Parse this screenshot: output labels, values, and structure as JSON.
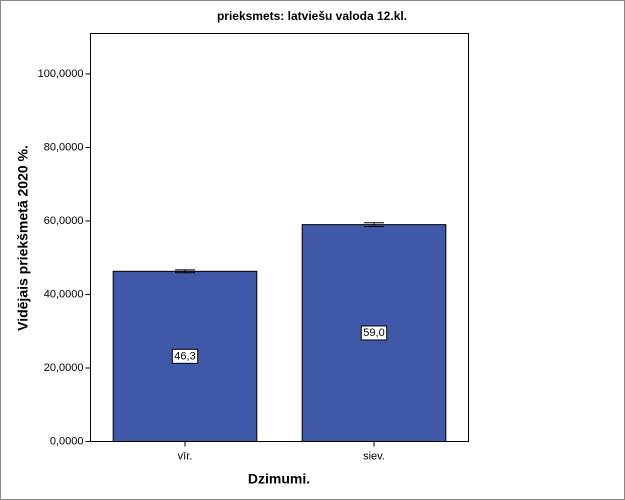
{
  "chart_data": {
    "type": "bar",
    "title": "prieksmets: latviešu valoda 12.kl.",
    "x_label": "Dzimumi.",
    "y_label": "Vidējais priekšmetā 2020 %.",
    "categories": [
      "vīr.",
      "siev."
    ],
    "values": [
      46.3,
      59.0
    ],
    "value_labels": [
      "46,3",
      "59,0"
    ],
    "errors": [
      0.4,
      0.5
    ],
    "color": "#3f58a8",
    "ylim": [
      0,
      111
    ],
    "yticks": [
      {
        "value": 0,
        "label": "0,0000"
      },
      {
        "value": 20,
        "label": "20,0000"
      },
      {
        "value": 40,
        "label": "40,0000"
      },
      {
        "value": 60,
        "label": "60,0000"
      },
      {
        "value": 80,
        "label": "80,0000"
      },
      {
        "value": 100,
        "label": "100,0000"
      }
    ]
  }
}
